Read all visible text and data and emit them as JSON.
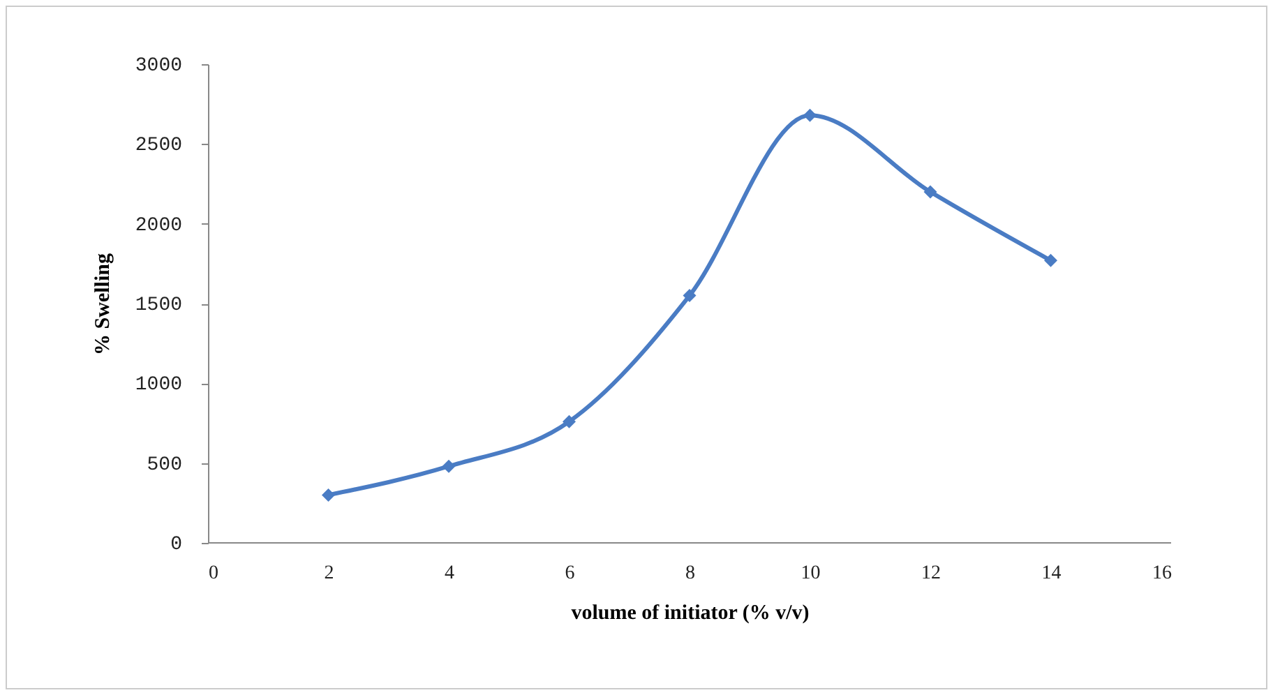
{
  "chart_data": {
    "type": "line",
    "xlabel": "volume of  initiator (% v/v)",
    "ylabel": "% Swelling",
    "x": [
      2,
      4,
      6,
      8,
      10,
      12,
      14
    ],
    "series": [
      {
        "color": "#4a7cc4",
        "values": [
          300,
          480,
          760,
          1550,
          2680,
          2200,
          1770
        ]
      }
    ],
    "xlim": [
      0,
      16
    ],
    "xticks": [
      0,
      2,
      4,
      6,
      8,
      10,
      12,
      14,
      16
    ],
    "ylim": [
      0,
      3000
    ],
    "yticks": [
      0,
      500,
      1000,
      1500,
      2000,
      2500,
      3000
    ],
    "grid": false,
    "legend": false,
    "marker": "diamond",
    "line_style": "solid"
  }
}
